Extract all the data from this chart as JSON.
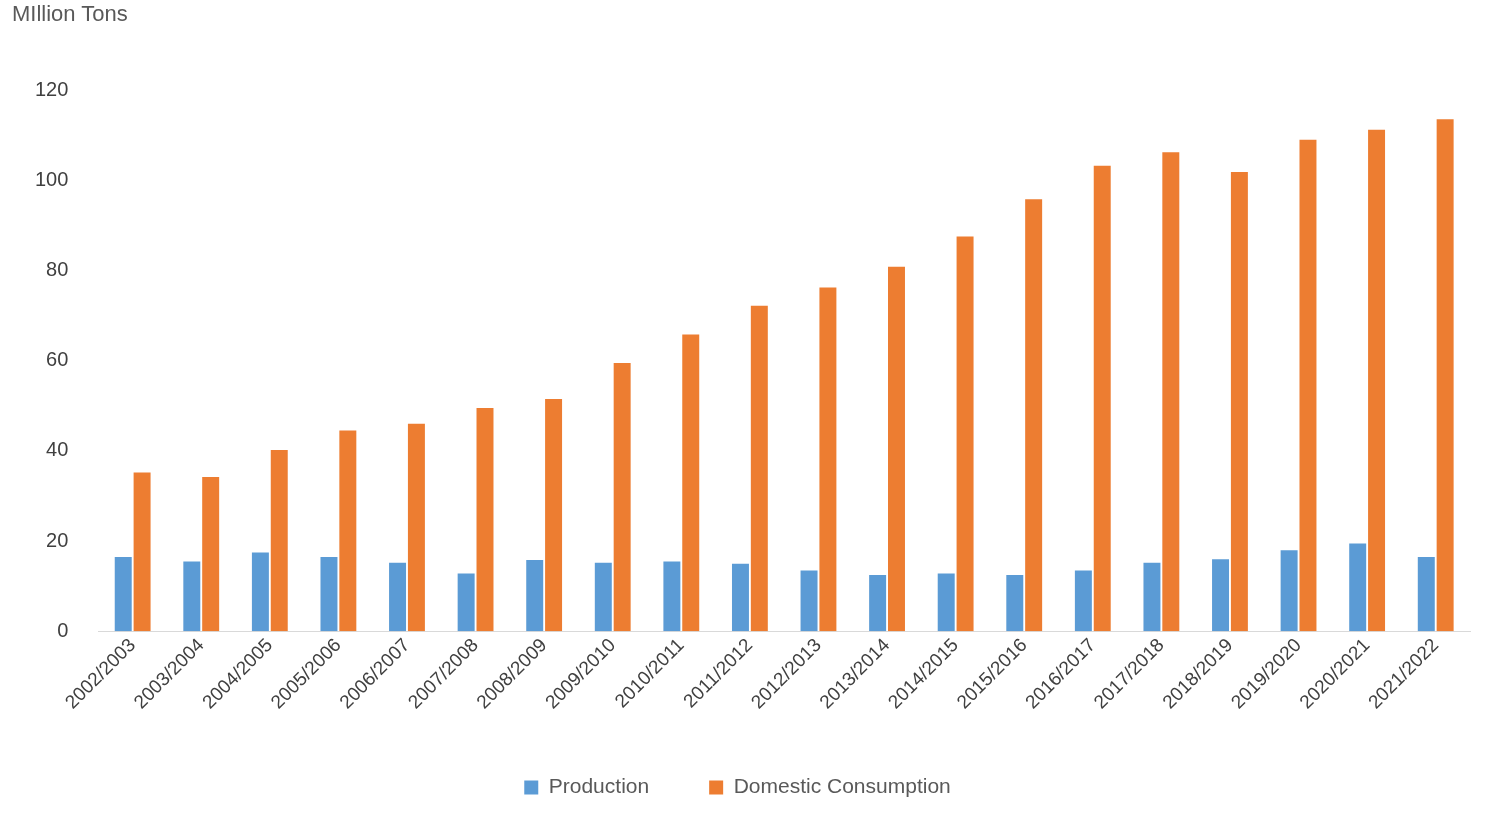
{
  "chart_data": {
    "type": "bar",
    "ylabel": "MIllion Tons",
    "categories": [
      "2002/2003",
      "2003/2004",
      "2004/2005",
      "2005/2006",
      "2006/2007",
      "2007/2008",
      "2008/2009",
      "2009/2010",
      "2010/2011",
      "2011/2012",
      "2012/2013",
      "2013/2014",
      "2014/2015",
      "2015/2016",
      "2016/2017",
      "2017/2018",
      "2018/2019",
      "2019/2020",
      "2020/2021",
      "2021/2022"
    ],
    "series": [
      {
        "name": "Production",
        "color": "#5b9bd5",
        "values": [
          16.5,
          15.5,
          17.5,
          16.5,
          15.2,
          12.8,
          15.8,
          15.2,
          15.5,
          15,
          13.5,
          12.5,
          12.8,
          12.5,
          13.5,
          15.2,
          16,
          18,
          19.5,
          16.5
        ]
      },
      {
        "name": "Domestic Consumption",
        "color": "#ed7d31",
        "values": [
          35.2,
          34.2,
          40.2,
          44.5,
          46,
          49.5,
          51.5,
          59.5,
          65.8,
          72.2,
          76.2,
          80.8,
          87.5,
          95.8,
          103.2,
          106.2,
          101.8,
          109,
          111.2,
          113.5
        ]
      }
    ],
    "ylim": [
      0,
      120
    ],
    "yticks": [
      0,
      20,
      40,
      60,
      80,
      100,
      120
    ],
    "grid": false,
    "legend": "bottom"
  }
}
